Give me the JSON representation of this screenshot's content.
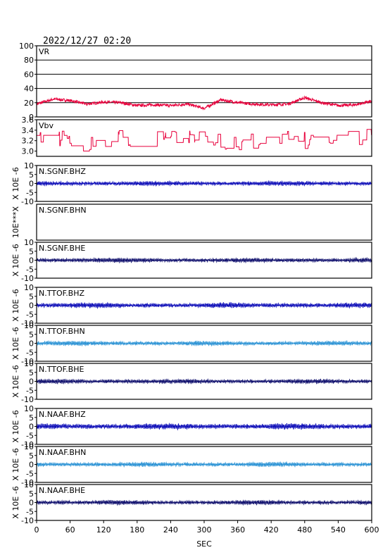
{
  "title": "2022/12/27 02:20",
  "xlabel": "SEC",
  "colors": {
    "vr": "#e8003c",
    "vbv": "#e8003c",
    "bhz": "#0000b4",
    "bhn": "#1e8cd2",
    "bhe": "#000064",
    "grid": "#000000"
  },
  "chart_data": {
    "type": "line",
    "xlim": [
      0,
      600
    ],
    "xticks": [
      "0",
      "60",
      "120",
      "180",
      "240",
      "300",
      "360",
      "420",
      "480",
      "540",
      "600"
    ],
    "panels": [
      {
        "id": "VR",
        "label": "VR",
        "ylabel": "",
        "ylim": [
          0,
          100
        ],
        "yticks": [
          "100",
          "80",
          "60",
          "40",
          "20",
          "0"
        ],
        "grid": true,
        "series_color": "vr",
        "has_trace": true,
        "profile_x": [
          0,
          30,
          60,
          90,
          120,
          150,
          180,
          210,
          240,
          270,
          300,
          330,
          360,
          390,
          420,
          450,
          480,
          510,
          540,
          570,
          600
        ],
        "profile_y": [
          18,
          25,
          23,
          18,
          21,
          20,
          16,
          17,
          16,
          18,
          12,
          24,
          20,
          18,
          17,
          18,
          27,
          20,
          16,
          17,
          22
        ]
      },
      {
        "id": "Vbv",
        "label": "Vbv",
        "ylabel": "",
        "ylim": [
          2.9,
          3.6
        ],
        "yticks": [
          "3.6",
          "3.4",
          "3.2",
          "3.0"
        ],
        "grid": false,
        "series_color": "vbv",
        "has_trace": true,
        "profile_x": [
          0,
          40,
          80,
          120,
          150,
          160,
          200,
          240,
          260,
          300,
          340,
          380,
          420,
          450,
          480,
          520,
          560,
          600
        ],
        "profile_y": [
          3.3,
          3.25,
          3.15,
          3.2,
          3.3,
          3.1,
          3.2,
          3.25,
          3.3,
          3.25,
          3.15,
          3.2,
          3.15,
          3.3,
          3.2,
          3.15,
          3.25,
          3.3
        ]
      },
      {
        "id": "N.SGNF.BHZ",
        "label": "N.SGNF.BHZ",
        "ylabel": "X 10E -6",
        "ylim": [
          -10,
          10
        ],
        "yticks": [
          "10",
          "5",
          "0",
          "-5",
          "-10"
        ],
        "grid": false,
        "series_color": "bhz",
        "has_trace": true,
        "amp": 0.6
      },
      {
        "id": "N.SGNF.BHN",
        "label": "N.SGNF.BHN",
        "ylabel": "10E***X",
        "ylim": [
          0,
          1
        ],
        "yticks": [],
        "grid": false,
        "series_color": "bhn",
        "has_trace": false
      },
      {
        "id": "N.SGNF.BHE",
        "label": "N.SGNF.BHE",
        "ylabel": "X 10E -6",
        "ylim": [
          -10,
          10
        ],
        "yticks": [
          "10",
          "5",
          "0",
          "-5",
          "-10"
        ],
        "grid": false,
        "series_color": "bhe",
        "has_trace": true,
        "amp": 0.6
      },
      {
        "id": "N.TTOF.BHZ",
        "label": "N.TTOF.BHZ",
        "ylabel": "X 10E -6",
        "ylim": [
          -10,
          10
        ],
        "yticks": [
          "10",
          "5",
          "0",
          "-5",
          "-10"
        ],
        "grid": false,
        "series_color": "bhz",
        "has_trace": true,
        "amp": 0.7
      },
      {
        "id": "N.TTOF.BHN",
        "label": "N.TTOF.BHN",
        "ylabel": "X 10E -6",
        "ylim": [
          -10,
          10
        ],
        "yticks": [
          "10",
          "5",
          "0",
          "-5",
          "-10"
        ],
        "grid": false,
        "series_color": "bhn",
        "has_trace": true,
        "amp": 0.6
      },
      {
        "id": "N.TTOF.BHE",
        "label": "N.TTOF.BHE",
        "ylabel": "X 10E -6",
        "ylim": [
          -10,
          10
        ],
        "yticks": [
          "10",
          "5",
          "0",
          "-5",
          "-10"
        ],
        "grid": false,
        "series_color": "bhe",
        "has_trace": true,
        "amp": 0.6
      },
      {
        "id": "N.NAAF.BHZ",
        "label": "N.NAAF.BHZ",
        "ylabel": "X 10E -6",
        "ylim": [
          -10,
          10
        ],
        "yticks": [
          "10",
          "5",
          "0",
          "-5",
          "-10"
        ],
        "grid": false,
        "series_color": "bhz",
        "has_trace": true,
        "amp": 0.8
      },
      {
        "id": "N.NAAF.BHN",
        "label": "N.NAAF.BHN",
        "ylabel": "X 10E -6",
        "ylim": [
          -10,
          10
        ],
        "yticks": [
          "10",
          "5",
          "0",
          "-5",
          "-10"
        ],
        "grid": false,
        "series_color": "bhn",
        "has_trace": true,
        "amp": 0.6
      },
      {
        "id": "N.NAAF.BHE",
        "label": "N.NAAF.BHE",
        "ylabel": "X 10E -6",
        "ylim": [
          -10,
          10
        ],
        "yticks": [
          "10",
          "5",
          "0",
          "-5",
          "-10"
        ],
        "grid": false,
        "series_color": "bhe",
        "has_trace": true,
        "amp": 0.6
      }
    ]
  }
}
